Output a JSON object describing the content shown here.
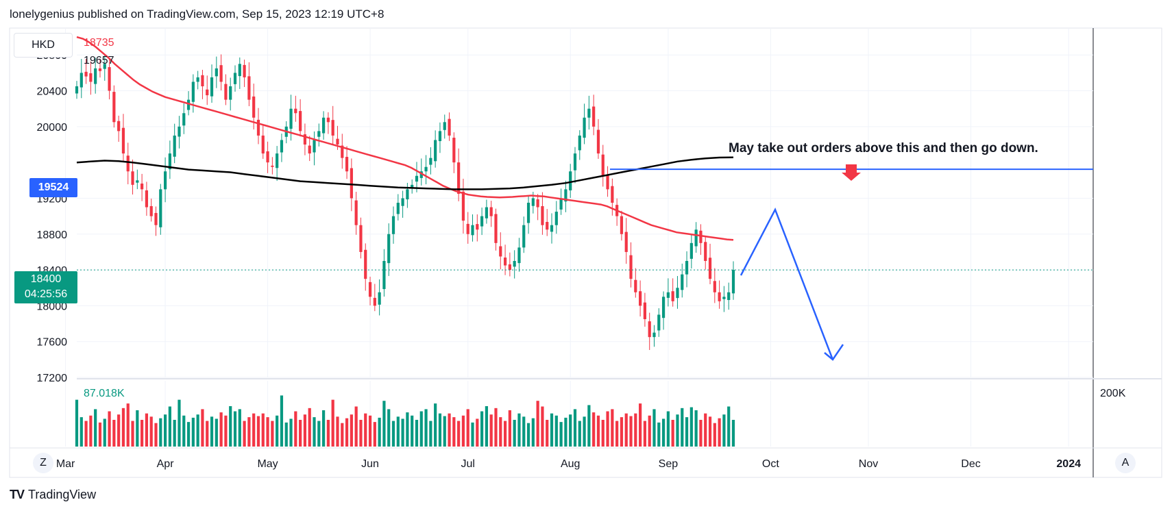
{
  "header": {
    "text": "lonelygenius published on TradingView.com, Sep 15, 2023 12:19 UTC+8"
  },
  "symbol": "HKD",
  "indicators": {
    "ma_red_value": "18735",
    "ma_black_value": "19657",
    "volume_value": "87.018K"
  },
  "annotation": "May take out orders above this and then go down.",
  "price_tags": {
    "horizontal_line": "19524",
    "last_price": "18400",
    "countdown": "04:25:56"
  },
  "footer": {
    "brand": "TradingView"
  },
  "buttons": {
    "z": "Z",
    "a": "A"
  },
  "colors": {
    "up": "#089981",
    "down": "#f23645",
    "ma_red": "#f23645",
    "ma_black": "#000000",
    "drawing": "#2962ff",
    "hline": "#2962ff"
  },
  "chart_data": {
    "type": "candlestick",
    "y_ticks": [
      "20800",
      "20400",
      "20000",
      "19200",
      "18800",
      "18400",
      "18000",
      "17600",
      "17200"
    ],
    "x_ticks": [
      "Mar",
      "Apr",
      "May",
      "Jun",
      "Jul",
      "Aug",
      "Sep",
      "Oct",
      "Nov",
      "Dec",
      "2024"
    ],
    "ylim": [
      17200,
      21100
    ],
    "volume_scale_label": "200K",
    "grid": true,
    "horizontal_line": 19524,
    "last_price": 18400,
    "closes": [
      20450,
      20600,
      20560,
      20500,
      20650,
      20620,
      20700,
      20400,
      20050,
      19950,
      19700,
      19500,
      19350,
      19400,
      19300,
      19100,
      19000,
      18900,
      19300,
      19500,
      19700,
      19900,
      20000,
      20150,
      20300,
      20500,
      20550,
      20450,
      20350,
      20550,
      20650,
      20500,
      20300,
      20450,
      20600,
      20700,
      20550,
      20300,
      20100,
      19900,
      19700,
      19600,
      19550,
      19700,
      19850,
      20000,
      20200,
      20150,
      19950,
      19800,
      19700,
      19850,
      19950,
      20100,
      20050,
      19900,
      19800,
      19650,
      19500,
      19200,
      18900,
      18600,
      18300,
      18100,
      18000,
      18150,
      18500,
      18800,
      19000,
      19150,
      19200,
      19300,
      19350,
      19450,
      19500,
      19550,
      19650,
      19850,
      19950,
      20050,
      19900,
      19600,
      19250,
      18950,
      18800,
      18900,
      18850,
      19000,
      19100,
      19000,
      18700,
      18550,
      18450,
      18400,
      18500,
      18650,
      18900,
      19150,
      19200,
      19100,
      18900,
      18850,
      18900,
      19050,
      19200,
      19300,
      19500,
      19700,
      19900,
      20100,
      20200,
      20000,
      19700,
      19450,
      19300,
      19150,
      19000,
      18800,
      18600,
      18300,
      18150,
      18000,
      17850,
      17650,
      17700,
      17900,
      18100,
      18150,
      18050,
      18200,
      18350,
      18500,
      18700,
      18850,
      18700,
      18500,
      18300,
      18150,
      18050,
      18100,
      18150,
      18400
    ],
    "ma_red": [
      21000,
      20980,
      20940,
      20890,
      20830,
      20770,
      20700,
      20640,
      20580,
      20520,
      20470,
      20430,
      20390,
      20360,
      20330,
      20310,
      20290,
      20270,
      20250,
      20230,
      20210,
      20190,
      20170,
      20150,
      20130,
      20110,
      20090,
      20070,
      20050,
      20030,
      20010,
      19990,
      19970,
      19950,
      19930,
      19910,
      19890,
      19870,
      19850,
      19830,
      19810,
      19790,
      19770,
      19750,
      19730,
      19710,
      19690,
      19670,
      19650,
      19630,
      19610,
      19590,
      19570,
      19540,
      19500,
      19460,
      19420,
      19380,
      19340,
      19310,
      19280,
      19260,
      19240,
      19230,
      19220,
      19215,
      19212,
      19210,
      19212,
      19215,
      19220,
      19225,
      19230,
      19225,
      19220,
      19210,
      19200,
      19190,
      19180,
      19170,
      19160,
      19150,
      19140,
      19130,
      19110,
      19080,
      19050,
      19020,
      18990,
      18960,
      18930,
      18900,
      18880,
      18860,
      18840,
      18820,
      18810,
      18800,
      18790,
      18780,
      18770,
      18760,
      18750,
      18740,
      18735
    ],
    "ma_black": [
      19600,
      19610,
      19620,
      19615,
      19600,
      19580,
      19560,
      19540,
      19520,
      19510,
      19500,
      19490,
      19470,
      19450,
      19430,
      19410,
      19390,
      19380,
      19370,
      19360,
      19350,
      19340,
      19330,
      19320,
      19315,
      19310,
      19305,
      19300,
      19300,
      19300,
      19305,
      19310,
      19320,
      19335,
      19350,
      19370,
      19400,
      19430,
      19460,
      19490,
      19520,
      19550,
      19580,
      19610,
      19630,
      19645,
      19655,
      19657
    ]
  }
}
